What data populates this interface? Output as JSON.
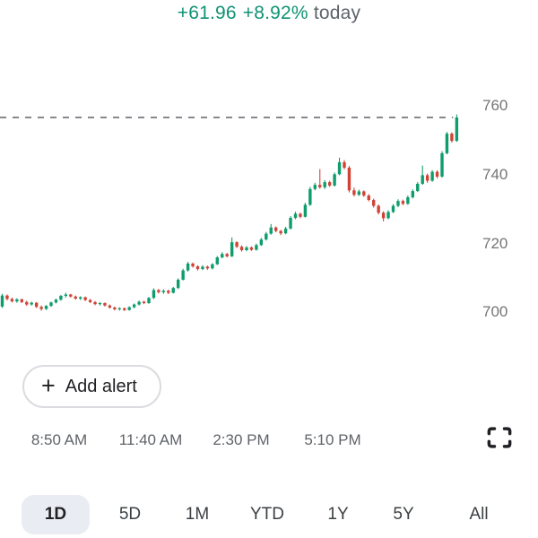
{
  "header": {
    "change": "+61.96",
    "percent": "+8.92%",
    "period": "today"
  },
  "colors": {
    "positive": "#0f9273",
    "muted": "#5f6368",
    "candle_up": "#0f9d6e",
    "candle_down": "#cf4437",
    "dash_line": "#85898d",
    "tick_text": "#757575"
  },
  "alert_button": {
    "label": "Add alert",
    "icon": "plus"
  },
  "fullscreen_icon": "fullscreen",
  "tabs": [
    {
      "label": "1D",
      "active": true
    },
    {
      "label": "5D",
      "active": false
    },
    {
      "label": "1M",
      "active": false
    },
    {
      "label": "YTD",
      "active": false
    },
    {
      "label": "1Y",
      "active": false
    },
    {
      "label": "5Y",
      "active": false
    },
    {
      "label": "All",
      "active": false
    }
  ],
  "chart_data": {
    "type": "candlestick",
    "title": "Intraday candlestick chart, up +61.96 (+8.92%) today",
    "y_ticks": [
      760,
      740,
      720,
      700
    ],
    "x_ticks": [
      "8:50 AM",
      "11:40 AM",
      "2:30 PM",
      "5:10 PM"
    ],
    "y_range": [
      698,
      762
    ],
    "last_price": 756.6,
    "day_low": 700.3,
    "day_high": 757.5,
    "grid": "off",
    "dashed_line_at_last_price": true,
    "candles": [
      [
        701.6,
        705.3,
        701.2,
        704.8
      ],
      [
        704.8,
        705.1,
        703.4,
        703.8
      ],
      [
        703.8,
        704.2,
        702.8,
        703.1
      ],
      [
        703.1,
        704.0,
        702.7,
        703.7
      ],
      [
        703.7,
        703.9,
        702.6,
        702.9
      ],
      [
        702.9,
        703.3,
        701.8,
        702.2
      ],
      [
        702.2,
        703.0,
        701.9,
        702.7
      ],
      [
        702.7,
        702.9,
        701.2,
        701.5
      ],
      [
        701.5,
        701.9,
        700.4,
        700.9
      ],
      [
        700.9,
        702.0,
        700.6,
        701.8
      ],
      [
        701.8,
        703.0,
        701.5,
        702.8
      ],
      [
        702.8,
        703.9,
        702.5,
        703.6
      ],
      [
        703.6,
        705.0,
        703.3,
        704.7
      ],
      [
        704.7,
        705.6,
        704.2,
        705.1
      ],
      [
        705.1,
        705.3,
        704.2,
        704.5
      ],
      [
        704.5,
        704.8,
        703.6,
        703.9
      ],
      [
        703.9,
        704.6,
        703.5,
        704.3
      ],
      [
        704.3,
        704.5,
        703.2,
        703.5
      ],
      [
        703.5,
        703.8,
        702.6,
        702.9
      ],
      [
        702.9,
        703.2,
        702.0,
        702.3
      ],
      [
        702.3,
        702.9,
        701.9,
        702.6
      ],
      [
        702.6,
        702.8,
        701.6,
        701.9
      ],
      [
        701.9,
        702.2,
        701.0,
        701.3
      ],
      [
        701.3,
        701.6,
        700.5,
        700.8
      ],
      [
        700.8,
        701.4,
        700.4,
        701.1
      ],
      [
        701.1,
        701.3,
        700.3,
        700.6
      ],
      [
        700.6,
        701.7,
        700.4,
        701.4
      ],
      [
        701.4,
        702.5,
        701.1,
        702.2
      ],
      [
        702.2,
        703.3,
        701.9,
        703.0
      ],
      [
        703.0,
        703.3,
        702.3,
        702.6
      ],
      [
        702.6,
        704.4,
        702.4,
        704.1
      ],
      [
        704.1,
        706.9,
        703.8,
        706.4
      ],
      [
        706.4,
        706.7,
        705.4,
        705.8
      ],
      [
        705.8,
        706.6,
        705.3,
        706.2
      ],
      [
        706.2,
        706.5,
        705.2,
        705.6
      ],
      [
        705.6,
        707.3,
        705.4,
        707.0
      ],
      [
        707.0,
        709.8,
        706.7,
        709.4
      ],
      [
        709.4,
        712.6,
        709.2,
        712.1
      ],
      [
        712.1,
        714.6,
        711.8,
        714.1
      ],
      [
        714.1,
        714.4,
        712.9,
        713.3
      ],
      [
        713.3,
        713.6,
        712.1,
        712.5
      ],
      [
        712.5,
        713.6,
        712.2,
        713.2
      ],
      [
        713.2,
        713.5,
        712.3,
        712.7
      ],
      [
        712.7,
        714.2,
        712.4,
        713.9
      ],
      [
        713.9,
        716.3,
        713.7,
        715.9
      ],
      [
        715.9,
        717.4,
        715.6,
        716.9
      ],
      [
        716.9,
        717.2,
        715.9,
        716.2
      ],
      [
        716.2,
        721.7,
        716.0,
        720.3
      ],
      [
        720.3,
        720.6,
        718.6,
        719.0
      ],
      [
        719.0,
        719.4,
        717.6,
        718.0
      ],
      [
        718.0,
        719.2,
        717.7,
        718.8
      ],
      [
        718.8,
        719.1,
        717.8,
        718.1
      ],
      [
        718.1,
        719.9,
        717.9,
        719.5
      ],
      [
        719.5,
        721.6,
        719.2,
        721.1
      ],
      [
        721.1,
        723.3,
        720.8,
        722.8
      ],
      [
        722.8,
        725.6,
        722.5,
        724.6
      ],
      [
        724.6,
        724.9,
        723.2,
        723.6
      ],
      [
        723.6,
        723.9,
        722.4,
        722.9
      ],
      [
        722.9,
        724.8,
        722.6,
        724.3
      ],
      [
        724.3,
        727.9,
        724.0,
        727.4
      ],
      [
        727.4,
        729.2,
        727.0,
        728.6
      ],
      [
        728.6,
        728.9,
        727.3,
        727.7
      ],
      [
        727.7,
        731.8,
        727.5,
        731.2
      ],
      [
        731.2,
        736.4,
        730.9,
        735.8
      ],
      [
        735.8,
        737.6,
        735.4,
        737.0
      ],
      [
        737.0,
        741.6,
        735.9,
        736.3
      ],
      [
        736.3,
        738.4,
        735.8,
        737.8
      ],
      [
        737.8,
        738.2,
        736.4,
        736.8
      ],
      [
        736.8,
        740.6,
        736.5,
        740.1
      ],
      [
        740.1,
        744.9,
        739.8,
        743.6
      ],
      [
        743.6,
        744.2,
        741.5,
        742.0
      ],
      [
        742.0,
        742.5,
        734.8,
        735.4
      ],
      [
        735.4,
        736.2,
        733.6,
        734.1
      ],
      [
        734.1,
        735.6,
        733.8,
        735.1
      ],
      [
        735.1,
        735.4,
        733.5,
        733.9
      ],
      [
        733.9,
        734.3,
        732.2,
        732.6
      ],
      [
        732.6,
        733.0,
        730.4,
        730.9
      ],
      [
        730.9,
        731.3,
        728.4,
        728.9
      ],
      [
        728.9,
        729.3,
        726.4,
        727.3
      ],
      [
        727.3,
        729.6,
        727.0,
        729.1
      ],
      [
        729.1,
        731.4,
        728.8,
        730.9
      ],
      [
        730.9,
        732.8,
        730.5,
        732.3
      ],
      [
        732.3,
        732.7,
        731.1,
        731.5
      ],
      [
        731.5,
        733.9,
        731.2,
        733.4
      ],
      [
        733.4,
        735.7,
        733.0,
        735.2
      ],
      [
        735.2,
        737.8,
        734.9,
        737.3
      ],
      [
        737.3,
        742.6,
        737.0,
        739.8
      ],
      [
        739.8,
        740.3,
        737.6,
        738.2
      ],
      [
        738.2,
        741.3,
        737.9,
        740.8
      ],
      [
        740.8,
        741.2,
        738.9,
        739.4
      ],
      [
        739.4,
        746.8,
        739.1,
        746.2
      ],
      [
        746.2,
        752.4,
        745.9,
        751.9
      ],
      [
        751.9,
        752.3,
        749.3,
        749.8
      ],
      [
        749.8,
        757.5,
        749.5,
        756.6
      ]
    ]
  }
}
